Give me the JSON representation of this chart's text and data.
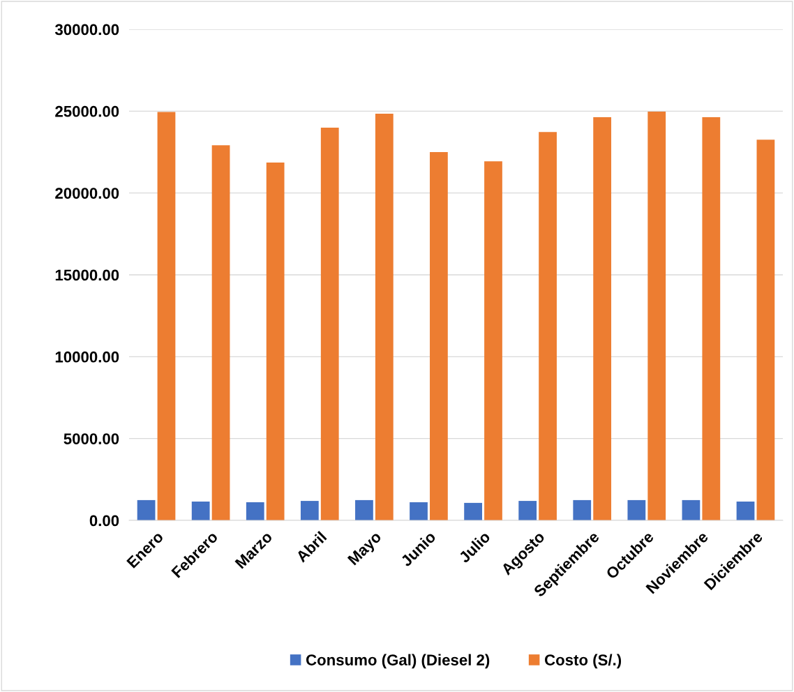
{
  "chart_data": {
    "type": "bar",
    "categories": [
      "Enero",
      "Febrero",
      "Marzo",
      "Abril",
      "Mayo",
      "Junio",
      "Julio",
      "Agosto",
      "Septiembre",
      "Octubre",
      "Noviembre",
      "Diciembre"
    ],
    "series": [
      {
        "name": "Consumo (Gal) (Diesel 2)",
        "color": "#4472c4",
        "values": [
          1240,
          1150,
          1110,
          1190,
          1240,
          1110,
          1070,
          1190,
          1240,
          1240,
          1240,
          1150
        ]
      },
      {
        "name": "Costo (S/.)",
        "color": "#ed7d31",
        "values": [
          24950,
          22920,
          21860,
          23990,
          24840,
          22500,
          21940,
          23730,
          24630,
          24970,
          24630,
          23260
        ]
      }
    ],
    "ylim": [
      0,
      30000
    ],
    "yticks": [
      {
        "value": 0,
        "label": "0.00"
      },
      {
        "value": 5000,
        "label": "5000.00"
      },
      {
        "value": 10000,
        "label": "10000.00"
      },
      {
        "value": 15000,
        "label": "15000.00"
      },
      {
        "value": 20000,
        "label": "20000.00"
      },
      {
        "value": 25000,
        "label": "25000.00"
      },
      {
        "value": 30000,
        "label": "30000.00"
      }
    ],
    "grid": "y",
    "legend": "bottom"
  }
}
